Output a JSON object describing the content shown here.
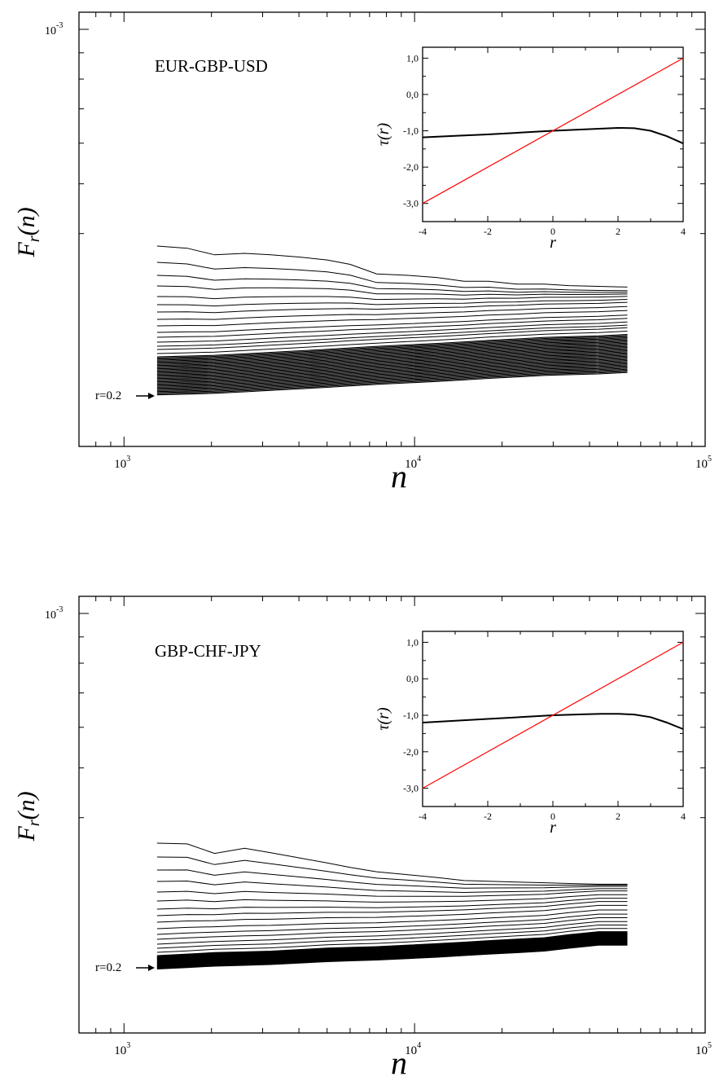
{
  "chart_data": [
    {
      "type": "line",
      "title": "EUR-GBP-USD",
      "xlabel": "n",
      "ylabel": "F_r(n)",
      "x_scale": "log",
      "y_scale": "log",
      "xlim": [
        700,
        100000
      ],
      "x_ticks": [
        1000,
        10000,
        100000
      ],
      "y_tick": 0.001,
      "annotation": "r=0.2",
      "x": [
        1300,
        1650,
        2050,
        2600,
        3200,
        4000,
        5000,
        6000,
        7400,
        9500,
        12000,
        14800,
        18000,
        22500,
        28000,
        34000,
        43000,
        54000
      ],
      "top_curve": [
        100,
        97,
        88,
        90,
        88,
        85,
        81,
        75,
        62,
        60,
        57,
        52,
        52,
        48,
        48,
        46,
        45,
        44
      ],
      "bottom_curve": [
        12,
        12.5,
        13,
        14,
        15,
        16,
        17,
        18,
        19,
        20,
        21,
        22,
        23,
        24,
        25,
        25.5,
        26,
        27
      ],
      "curve_count": 15,
      "dense_band_count": 12,
      "inset": {
        "type": "line",
        "xlabel": "r",
        "ylabel": "τ(r)",
        "xlim": [
          -4,
          4
        ],
        "ylim": [
          -3.5,
          1.3
        ],
        "x_ticks": [
          -4,
          -2,
          0,
          2,
          4
        ],
        "y_ticks": [
          1.0,
          0.0,
          -1.0,
          -2.0,
          -3.0
        ],
        "y_tick_labels": [
          "1,0",
          "0,0",
          "-1,0",
          "-2,0",
          "-3,0"
        ],
        "series": [
          {
            "color": "#000000",
            "x": [
              -4,
              -3,
              -2,
              -1,
              0,
              1,
              1.5,
              2,
              2.5,
              3,
              3.5,
              4
            ],
            "y": [
              -1.18,
              -1.14,
              -1.1,
              -1.05,
              -1.0,
              -0.96,
              -0.94,
              -0.92,
              -0.93,
              -1.0,
              -1.15,
              -1.35
            ]
          },
          {
            "color": "#ff0000",
            "x": [
              -4,
              4
            ],
            "y": [
              -3.0,
              1.0
            ]
          }
        ]
      }
    },
    {
      "type": "line",
      "title": "GBP-CHF-JPY",
      "xlabel": "n",
      "ylabel": "F_r(n)",
      "x_scale": "log",
      "y_scale": "log",
      "xlim": [
        700,
        100000
      ],
      "x_ticks": [
        1000,
        10000,
        100000
      ],
      "y_tick": 0.001,
      "annotation": "r=0.2",
      "x": [
        1300,
        1650,
        2050,
        2600,
        3200,
        4000,
        5000,
        6000,
        7400,
        9500,
        12000,
        14800,
        18000,
        22500,
        28000,
        34000,
        43000,
        54000
      ],
      "top_curve": [
        100,
        99,
        86,
        93,
        87,
        80,
        73,
        67,
        61,
        57,
        53,
        49,
        48,
        47,
        46,
        45,
        44,
        44
      ],
      "bottom_curve": [
        12,
        13,
        14,
        14.5,
        15,
        16,
        17,
        17.5,
        18,
        19,
        20,
        21,
        22,
        23,
        24,
        26,
        28,
        28
      ],
      "curve_count": 15,
      "dense_band_count": 12,
      "inset": {
        "type": "line",
        "xlabel": "r",
        "ylabel": "τ(r)",
        "xlim": [
          -4,
          4
        ],
        "ylim": [
          -3.5,
          1.3
        ],
        "x_ticks": [
          -4,
          -2,
          0,
          2,
          4
        ],
        "y_ticks": [
          1.0,
          0.0,
          -1.0,
          -2.0,
          -3.0
        ],
        "y_tick_labels": [
          "1,0",
          "0,0",
          "-1,0",
          "-2,0",
          "-3,0"
        ],
        "series": [
          {
            "color": "#000000",
            "x": [
              -4,
              -3,
              -2,
              -1,
              0,
              1,
              1.5,
              2,
              2.5,
              3,
              3.5,
              4
            ],
            "y": [
              -1.2,
              -1.15,
              -1.1,
              -1.05,
              -1.0,
              -0.97,
              -0.96,
              -0.96,
              -0.98,
              -1.05,
              -1.2,
              -1.38
            ]
          },
          {
            "color": "#ff0000",
            "x": [
              -4,
              4
            ],
            "y": [
              -3.0,
              1.0
            ]
          }
        ]
      }
    }
  ]
}
